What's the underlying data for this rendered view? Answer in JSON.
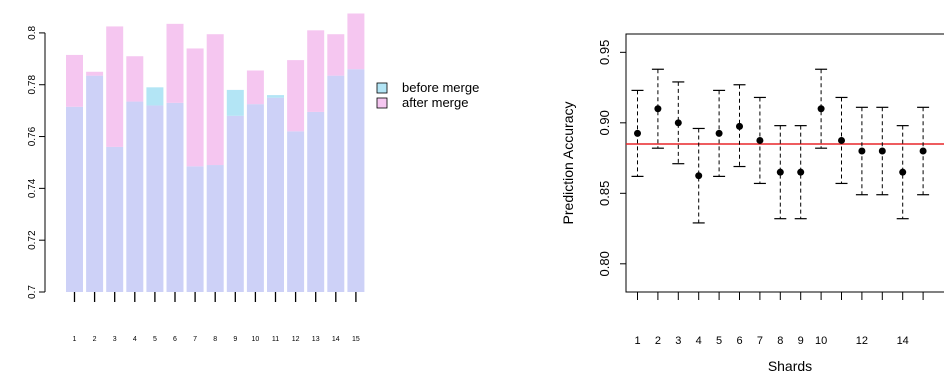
{
  "chart_data": [
    {
      "type": "bar",
      "categories": [
        "1",
        "2",
        "3",
        "4",
        "5",
        "6",
        "7",
        "8",
        "9",
        "10",
        "11",
        "12",
        "13",
        "14",
        "15"
      ],
      "series": [
        {
          "name": "before merge",
          "values": [
            0.7715,
            0.7835,
            0.756,
            0.7735,
            0.779,
            0.773,
            0.7485,
            0.749,
            0.778,
            0.7725,
            0.776,
            0.762,
            0.7695,
            0.7835,
            0.786
          ]
        },
        {
          "name": "after merge",
          "values": [
            0.7915,
            0.785,
            0.8025,
            0.791,
            0.772,
            0.8035,
            0.794,
            0.7995,
            0.768,
            0.7855,
            0.775,
            0.7895,
            0.801,
            0.7995,
            0.8075
          ]
        }
      ],
      "ylim": [
        0.7,
        0.81
      ],
      "yticks": [
        0.7,
        0.72,
        0.74,
        0.76,
        0.78,
        0.8
      ],
      "ytick_labels": [
        "0.7",
        "0.72",
        "0.74",
        "0.76",
        "0.78",
        "0.8"
      ],
      "colors": {
        "before merge": "#b3e5f5",
        "after merge": "#f5c6f0",
        "overlap": "#cdd1f7"
      },
      "legend": {
        "position": "right",
        "entries": [
          "before merge",
          "after merge"
        ]
      },
      "title": "",
      "xlabel": "",
      "ylabel": ""
    },
    {
      "type": "scatter",
      "subtype": "errorbar",
      "x": [
        1,
        2,
        3,
        4,
        5,
        6,
        7,
        8,
        9,
        10,
        11,
        12,
        13,
        14,
        15
      ],
      "y": [
        0.8925,
        0.91,
        0.9,
        0.8625,
        0.8925,
        0.8975,
        0.8875,
        0.865,
        0.865,
        0.91,
        0.8875,
        0.88,
        0.88,
        0.865,
        0.88
      ],
      "lower": [
        0.862,
        0.882,
        0.871,
        0.829,
        0.862,
        0.869,
        0.857,
        0.832,
        0.832,
        0.882,
        0.857,
        0.849,
        0.849,
        0.832,
        0.849
      ],
      "upper": [
        0.923,
        0.938,
        0.929,
        0.896,
        0.923,
        0.927,
        0.918,
        0.898,
        0.898,
        0.938,
        0.918,
        0.911,
        0.911,
        0.898,
        0.911
      ],
      "reference_line": 0.885,
      "reference_color": "#e8272a",
      "xlim": [
        0.5,
        15.5
      ],
      "ylim": [
        0.78,
        0.963
      ],
      "yticks": [
        0.8,
        0.85,
        0.9,
        0.95
      ],
      "ytick_labels": [
        "0.80",
        "0.85",
        "0.90",
        "0.95"
      ],
      "xtick_labels": [
        "1",
        "2",
        "3",
        "4",
        "5",
        "6",
        "7",
        "8",
        "9",
        "10",
        "",
        "12",
        "",
        "14",
        ""
      ],
      "xlabel": "Shards",
      "ylabel": "Prediction Accuracy",
      "title": ""
    }
  ]
}
